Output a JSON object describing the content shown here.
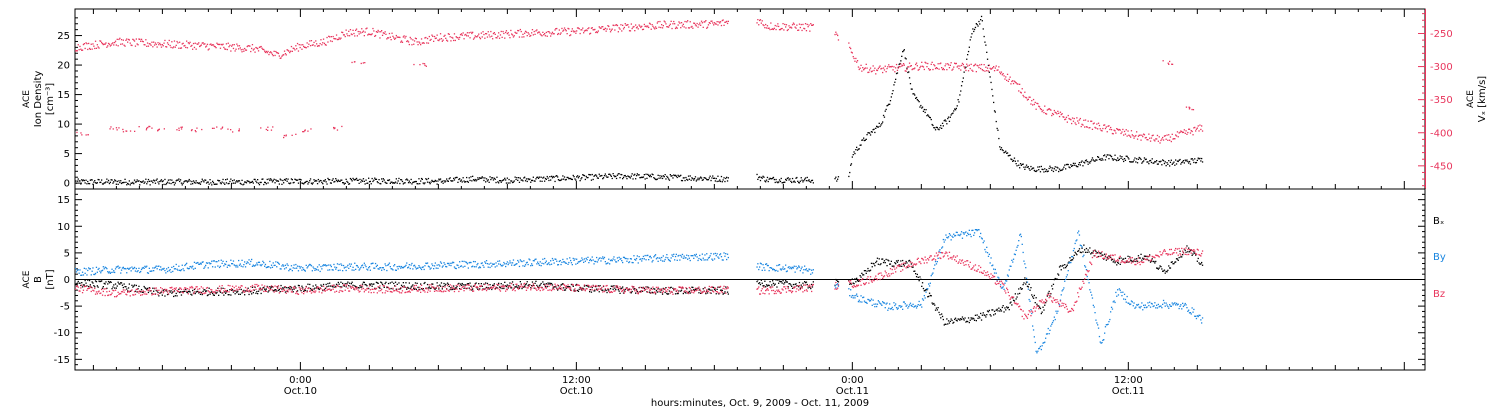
{
  "x_axis": {
    "title": "hours:minutes, Oct.  9, 2009 - Oct. 11, 2009",
    "ticks": [
      {
        "time": "0:00",
        "date": "Oct.10",
        "hour": 24
      },
      {
        "time": "12:00",
        "date": "Oct.10",
        "hour": 36
      },
      {
        "time": "0:00",
        "date": "Oct.11",
        "hour": 48
      },
      {
        "time": "12:00",
        "date": "Oct.11",
        "hour": 60
      }
    ]
  },
  "colors": {
    "axes": "#000000",
    "density": "#000000",
    "vx": "#e8365d",
    "bx": "#000000",
    "by": "#1a86e0",
    "bz": "#e8365d"
  },
  "chart_data": [
    {
      "type": "scatter",
      "panel": "top",
      "ylabel_left": [
        "ACE",
        "Ion Density",
        "[cm⁻³]"
      ],
      "ylabel_right": [
        "ACE",
        "Vₓ [km/s]"
      ],
      "x_unit": "hours since Oct. 9, 2009 00:00",
      "xlim": [
        14.2,
        72.9
      ],
      "ylim_left": [
        -1,
        29.5
      ],
      "yticks_left": [
        0,
        5,
        10,
        15,
        20,
        25
      ],
      "ylim_right": [
        -485,
        -213
      ],
      "yticks_right": [
        -450,
        -400,
        -350,
        -300,
        -250
      ],
      "data_gaps": [
        [
          42.6,
          43.8
        ],
        [
          46.3,
          47.2
        ],
        [
          47.4,
          47.8
        ]
      ],
      "data_end": 63.2,
      "series": [
        {
          "name": "Ion Density",
          "axis": "left",
          "color": "#000000",
          "points": [
            [
              14.2,
              0.3
            ],
            [
              18,
              0.3
            ],
            [
              22,
              0.3
            ],
            [
              23.5,
              0.4
            ],
            [
              26,
              0.4
            ],
            [
              28,
              0.5
            ],
            [
              30,
              0.4
            ],
            [
              31.5,
              0.8
            ],
            [
              33,
              0.6
            ],
            [
              36,
              1.0
            ],
            [
              38,
              1.3
            ],
            [
              42.6,
              0.8
            ],
            [
              43.8,
              1.2
            ],
            [
              44.3,
              0.7
            ],
            [
              46.3,
              0.6
            ],
            [
              47.2,
              0.7
            ],
            [
              47.4,
              0.7
            ],
            [
              47.8,
              0.9
            ],
            [
              48.0,
              5.0
            ],
            [
              48.6,
              8.0
            ],
            [
              49.2,
              10.0
            ],
            [
              49.6,
              14.0
            ],
            [
              50.2,
              23.0
            ],
            [
              50.6,
              15.0
            ],
            [
              51.2,
              12.0
            ],
            [
              51.6,
              9.0
            ],
            [
              52.2,
              11.0
            ],
            [
              52.6,
              14.0
            ],
            [
              53.2,
              26.0
            ],
            [
              53.6,
              28.0
            ],
            [
              54.4,
              6.0
            ],
            [
              55.3,
              3.0
            ],
            [
              55.8,
              2.5
            ],
            [
              57,
              2.5
            ],
            [
              59,
              4.5
            ],
            [
              60.5,
              4.0
            ],
            [
              61.8,
              3.5
            ],
            [
              63.2,
              4.0
            ]
          ]
        },
        {
          "name": "Vx",
          "axis": "right",
          "color": "#e8365d",
          "points": [
            [
              14.2,
              -270
            ],
            [
              16,
              -262
            ],
            [
              18,
              -265
            ],
            [
              20,
              -268
            ],
            [
              22,
              -272
            ],
            [
              23,
              -282
            ],
            [
              24,
              -268
            ],
            [
              25,
              -262
            ],
            [
              26,
              -248
            ],
            [
              27,
              -246
            ],
            [
              28,
              -255
            ],
            [
              29,
              -262
            ],
            [
              30,
              -255
            ],
            [
              32,
              -252
            ],
            [
              34,
              -248
            ],
            [
              36,
              -246
            ],
            [
              38,
              -240
            ],
            [
              40,
              -236
            ],
            [
              42,
              -235
            ],
            [
              42.6,
              -232
            ],
            [
              43.8,
              -228
            ],
            [
              44.3,
              -238
            ],
            [
              46.3,
              -240
            ],
            [
              47.2,
              -245
            ],
            [
              47.4,
              -262
            ],
            [
              47.8,
              -268
            ],
            [
              48.3,
              -300
            ],
            [
              49,
              -304
            ],
            [
              51,
              -298
            ],
            [
              53,
              -300
            ],
            [
              54.3,
              -303
            ],
            [
              55.2,
              -330
            ],
            [
              56,
              -360
            ],
            [
              57.5,
              -380
            ],
            [
              59,
              -393
            ],
            [
              60.5,
              -405
            ],
            [
              61.5,
              -410
            ],
            [
              63.2,
              -392
            ]
          ]
        }
      ],
      "scatter_noise": {
        "vx_outliers": [
          [
            14.5,
            -400
          ],
          [
            15.8,
            -392
          ],
          [
            16.5,
            -395
          ],
          [
            17.2,
            -392
          ],
          [
            17.8,
            -394
          ],
          [
            18.6,
            -393
          ],
          [
            19.5,
            -395
          ],
          [
            20.3,
            -392
          ],
          [
            21.1,
            -396
          ],
          [
            22.5,
            -393
          ],
          [
            23.5,
            -404
          ],
          [
            24.2,
            -396
          ],
          [
            25.5,
            -392
          ],
          [
            26.5,
            -294
          ],
          [
            29.2,
            -296
          ],
          [
            61.6,
            -293
          ],
          [
            62.7,
            -362
          ]
        ]
      }
    },
    {
      "type": "scatter",
      "panel": "bottom",
      "ylabel_left": [
        "ACE",
        "B",
        "[nT]"
      ],
      "x_unit": "hours since Oct. 9, 2009 00:00",
      "xlim": [
        14.2,
        72.9
      ],
      "ylim": [
        -17,
        17
      ],
      "yticks": [
        -15,
        -10,
        -5,
        0,
        5,
        10,
        15
      ],
      "zero_line": true,
      "data_gaps": [
        [
          42.6,
          43.8
        ],
        [
          46.3,
          47.2
        ],
        [
          47.4,
          47.8
        ]
      ],
      "data_end": 63.2,
      "series": [
        {
          "name": "Bₓ",
          "color": "#000000",
          "points": [
            [
              14.2,
              -0.5
            ],
            [
              16,
              -1.0
            ],
            [
              18,
              -2.5
            ],
            [
              20,
              -2.2
            ],
            [
              22,
              -2.0
            ],
            [
              24,
              -1.5
            ],
            [
              26,
              -1.0
            ],
            [
              28,
              -1.0
            ],
            [
              30,
              -1.2
            ],
            [
              32,
              -1.2
            ],
            [
              34,
              -0.8
            ],
            [
              36,
              -1.5
            ],
            [
              38,
              -1.8
            ],
            [
              40,
              -2.0
            ],
            [
              42.6,
              -2.0
            ],
            [
              44,
              -0.5
            ],
            [
              46,
              -1.0
            ],
            [
              47.5,
              -0.5
            ],
            [
              48.3,
              0.2
            ],
            [
              49,
              3.5
            ],
            [
              50.5,
              3.0
            ],
            [
              52,
              -8.0
            ],
            [
              53.5,
              -7.0
            ],
            [
              54.8,
              -5.0
            ],
            [
              55.5,
              0.0
            ],
            [
              56.2,
              -6.0
            ],
            [
              57,
              2.0
            ],
            [
              58,
              6.0
            ],
            [
              59.5,
              3.5
            ],
            [
              60.8,
              4.5
            ],
            [
              61.5,
              1.5
            ],
            [
              62.5,
              6.0
            ],
            [
              63.2,
              3.0
            ]
          ]
        },
        {
          "name": "B_y",
          "color": "#1a86e0",
          "points": [
            [
              14.2,
              1.5
            ],
            [
              16,
              2.0
            ],
            [
              18,
              2.0
            ],
            [
              20,
              3.0
            ],
            [
              22,
              3.2
            ],
            [
              24,
              2.2
            ],
            [
              26,
              2.5
            ],
            [
              28,
              2.5
            ],
            [
              30,
              2.8
            ],
            [
              32,
              3.0
            ],
            [
              34,
              3.3
            ],
            [
              36,
              3.6
            ],
            [
              38,
              3.8
            ],
            [
              40,
              4.2
            ],
            [
              42.6,
              4.5
            ],
            [
              44,
              2.5
            ],
            [
              46,
              2.0
            ],
            [
              47.5,
              -1.5
            ],
            [
              48.3,
              -3.5
            ],
            [
              49.5,
              -5.0
            ],
            [
              51,
              -4.5
            ],
            [
              52,
              8.0
            ],
            [
              53.5,
              9.0
            ],
            [
              54.5,
              -2.0
            ],
            [
              55.3,
              8.5
            ],
            [
              56,
              -14.0
            ],
            [
              56.8,
              -7.0
            ],
            [
              57.8,
              9.0
            ],
            [
              58.8,
              -12.0
            ],
            [
              59.5,
              -2.0
            ],
            [
              60.3,
              -5.0
            ],
            [
              61.5,
              -4.5
            ],
            [
              62.5,
              -5.0
            ],
            [
              63.2,
              -7.5
            ]
          ]
        },
        {
          "name": "B_z",
          "color": "#e8365d",
          "points": [
            [
              14.2,
              -1.5
            ],
            [
              16,
              -2.5
            ],
            [
              18,
              -2.0
            ],
            [
              20,
              -1.8
            ],
            [
              22,
              -1.5
            ],
            [
              24,
              -2.0
            ],
            [
              26,
              -1.5
            ],
            [
              28,
              -1.8
            ],
            [
              30,
              -1.5
            ],
            [
              32,
              -1.5
            ],
            [
              34,
              -1.2
            ],
            [
              36,
              -1.5
            ],
            [
              38,
              -1.8
            ],
            [
              40,
              -2.0
            ],
            [
              42.6,
              -1.8
            ],
            [
              44,
              -2.0
            ],
            [
              46,
              -1.5
            ],
            [
              47.5,
              -1.0
            ],
            [
              48.3,
              -0.5
            ],
            [
              49,
              0.5
            ],
            [
              50.5,
              3.0
            ],
            [
              52,
              5.0
            ],
            [
              53.5,
              2.0
            ],
            [
              54.5,
              -1.0
            ],
            [
              55.5,
              -7.0
            ],
            [
              56.5,
              -3.0
            ],
            [
              57.5,
              -6.0
            ],
            [
              58.5,
              5.0
            ],
            [
              59.5,
              4.0
            ],
            [
              60.5,
              3.5
            ],
            [
              61.5,
              5.0
            ],
            [
              62.5,
              5.5
            ],
            [
              63.2,
              5.0
            ]
          ]
        }
      ],
      "legend": [
        {
          "label": "Bₓ",
          "color": "#000000"
        },
        {
          "label": "B_y",
          "color": "#1a86e0"
        },
        {
          "label": "B_z",
          "color": "#e8365d"
        }
      ]
    }
  ]
}
